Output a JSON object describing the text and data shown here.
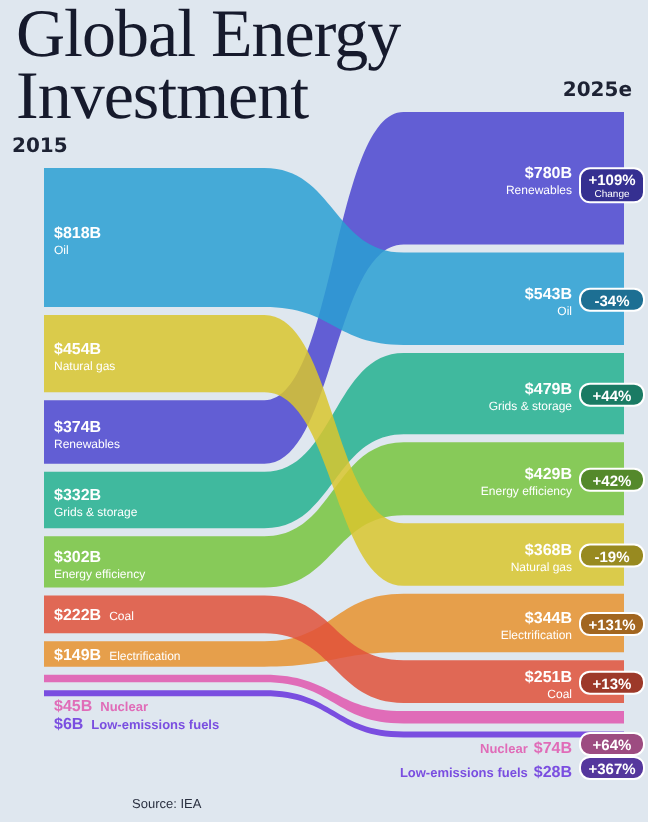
{
  "chart_data": {
    "type": "other",
    "title": "Global Energy Investment",
    "categories": [
      "2015",
      "2025e"
    ],
    "series": [
      {
        "name": "Oil",
        "color": "#2a9fd2",
        "values": [
          818,
          543
        ],
        "value_labels": [
          "$818B",
          "$543B"
        ]
      },
      {
        "name": "Natural gas",
        "color": "#d9c52e",
        "values": [
          454,
          368
        ],
        "value_labels": [
          "$454B",
          "$368B"
        ]
      },
      {
        "name": "Renewables",
        "color": "#4c45cf",
        "values": [
          374,
          780
        ],
        "value_labels": [
          "$374B",
          "$780B"
        ]
      },
      {
        "name": "Grids & storage",
        "color": "#25b08f",
        "values": [
          332,
          479
        ],
        "value_labels": [
          "$332B",
          "$479B"
        ]
      },
      {
        "name": "Energy efficiency",
        "color": "#78c43e",
        "values": [
          302,
          429
        ],
        "value_labels": [
          "$302B",
          "$429B"
        ]
      },
      {
        "name": "Coal",
        "color": "#e0513a",
        "values": [
          222,
          251
        ],
        "value_labels": [
          "$222B",
          "$251B"
        ]
      },
      {
        "name": "Electrification",
        "color": "#e8922e",
        "values": [
          149,
          344
        ],
        "value_labels": [
          "$149B",
          "$344B"
        ]
      },
      {
        "name": "Nuclear",
        "color": "#e06cb8",
        "values": [
          45,
          74
        ],
        "value_labels": [
          "$45B",
          "$74B"
        ]
      },
      {
        "name": "Low-emissions fuels",
        "color": "#7a4ee0",
        "values": [
          6,
          28
        ],
        "value_labels": [
          "$6B",
          "$28B"
        ]
      }
    ],
    "annotations": [
      "+109%",
      "Change",
      "-34%",
      "+44%",
      "+42%",
      "-19%",
      "+131%",
      "+13%",
      "+64%",
      "+367%",
      "Source: IEA"
    ]
  }
}
